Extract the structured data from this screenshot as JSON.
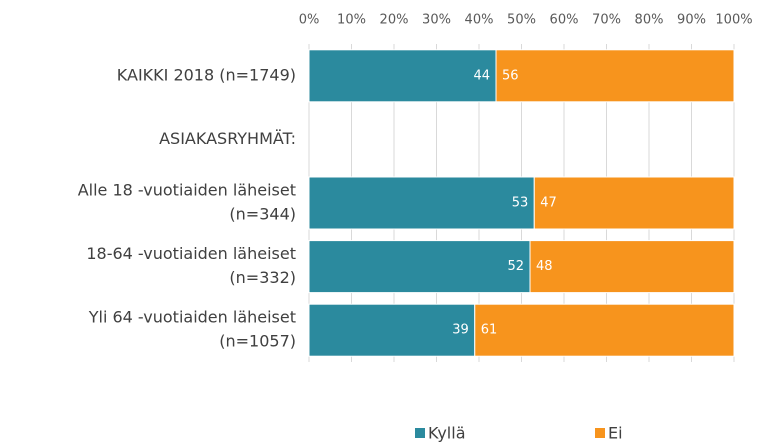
{
  "chart_data": {
    "type": "stacked-bar-horizontal",
    "categories": [
      [
        "KAIKKI 2018 (n=1749)"
      ],
      [
        "ASIAKASRYHMÄT:"
      ],
      [
        "Alle 18 -vuotiaiden läheiset",
        "(n=344)"
      ],
      [
        "18-64 -vuotiaiden läheiset",
        "(n=332)"
      ],
      [
        "Yli 64 -vuotiaiden läheiset",
        "(n=1057)"
      ]
    ],
    "series": [
      {
        "name": "Kyllä",
        "color": "#2b8a9e",
        "values": [
          44,
          null,
          53,
          52,
          39
        ]
      },
      {
        "name": "Ei",
        "color": "#f7941d",
        "values": [
          56,
          null,
          47,
          48,
          61
        ]
      }
    ],
    "xlim": [
      0,
      100
    ],
    "xticks": [
      {
        "value": 0,
        "label": "0%"
      },
      {
        "value": 10,
        "label": "10%"
      },
      {
        "value": 20,
        "label": "20%"
      },
      {
        "value": 30,
        "label": "30%"
      },
      {
        "value": 40,
        "label": "40%"
      },
      {
        "value": 50,
        "label": "50%"
      },
      {
        "value": 60,
        "label": "60%"
      },
      {
        "value": 70,
        "label": "70%"
      },
      {
        "value": 80,
        "label": "80%"
      },
      {
        "value": 90,
        "label": "90%"
      },
      {
        "value": 100,
        "label": "100%"
      }
    ],
    "grid": true,
    "legend": "bottom"
  }
}
